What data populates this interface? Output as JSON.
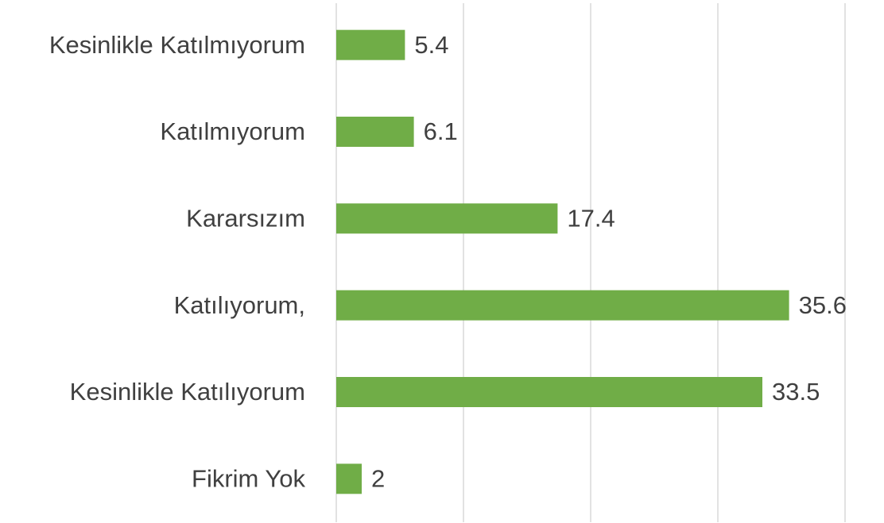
{
  "chart_data": {
    "type": "hbar",
    "categories": [
      "Kesinlikle Katılmıyorum",
      "Katılmıyorum",
      "Kararsızım",
      "Katılıyorum,",
      "Kesinlikle Katılıyorum",
      "Fikrim Yok"
    ],
    "values": [
      5.4,
      6.1,
      17.4,
      35.6,
      33.5,
      2
    ],
    "color": "#70ad47",
    "xlim": [
      0,
      40
    ],
    "xticks": [
      0,
      10,
      20,
      30,
      40
    ],
    "grid": true
  }
}
